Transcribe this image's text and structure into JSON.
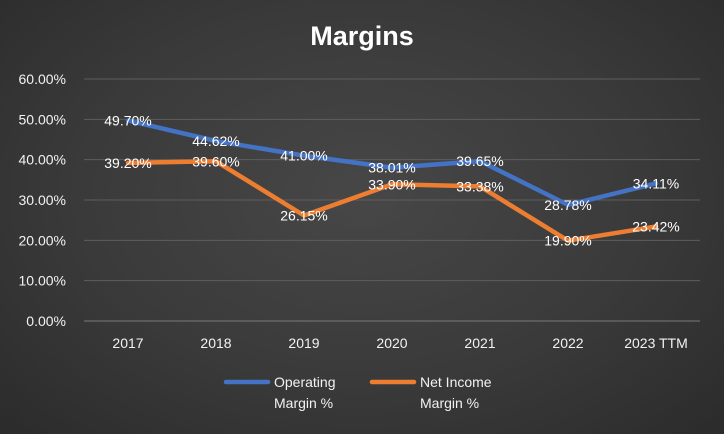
{
  "chart_data": {
    "type": "line",
    "title": "Margins",
    "categories": [
      "2017",
      "2018",
      "2019",
      "2020",
      "2021",
      "2022",
      "2023 TTM"
    ],
    "ylim": [
      0,
      60
    ],
    "yticks": [
      "0.00%",
      "10.00%",
      "20.00%",
      "30.00%",
      "40.00%",
      "50.00%",
      "60.00%"
    ],
    "grid": true,
    "legend": "bottom-center",
    "xlabel": "",
    "ylabel": "",
    "series": [
      {
        "name": "Operating Margin %",
        "legend_lines": [
          "Operating",
          "Margin %"
        ],
        "color": "#4472C4",
        "values": [
          49.7,
          44.62,
          41.0,
          38.01,
          39.65,
          28.78,
          34.11
        ],
        "labels": [
          "49.70%",
          "44.62%",
          "41.00%",
          "38.01%",
          "39.65%",
          "28.78%",
          "34.11%"
        ]
      },
      {
        "name": "Net Income Margin %",
        "legend_lines": [
          "Net Income",
          "Margin %"
        ],
        "color": "#ED7D31",
        "values": [
          39.2,
          39.6,
          26.15,
          33.9,
          33.38,
          19.9,
          23.42
        ],
        "labels": [
          "39.20%",
          "39.60%",
          "26.15%",
          "33.90%",
          "33.38%",
          "19.90%",
          "23.42%"
        ]
      }
    ]
  }
}
